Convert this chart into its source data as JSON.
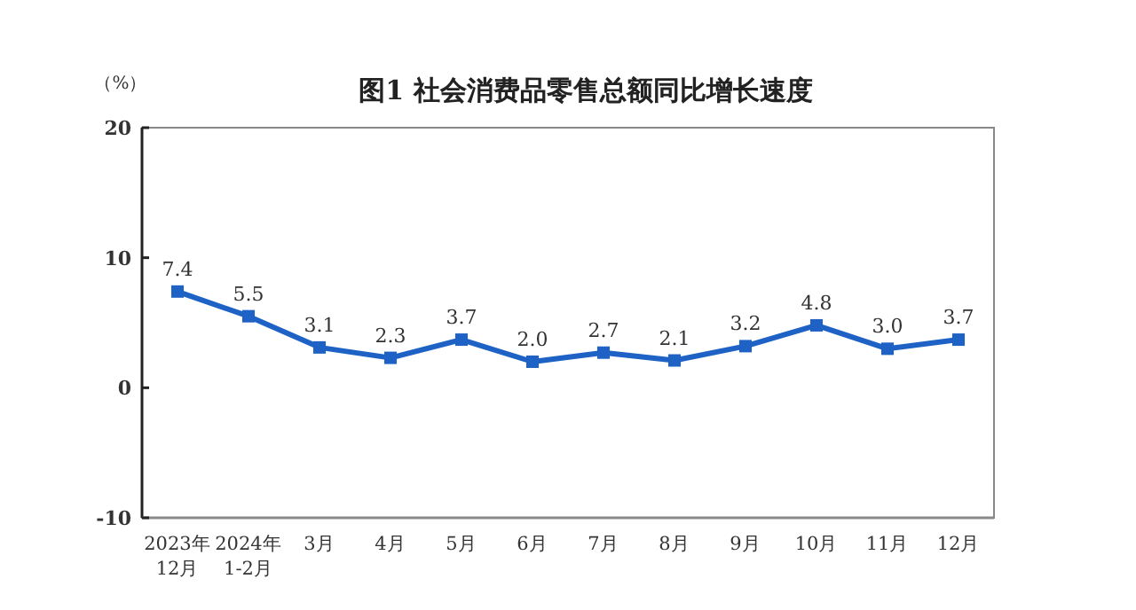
{
  "chart_data": {
    "type": "line",
    "title": "图1  社会消费品零售总额同比增长速度",
    "ylabel": "（%）",
    "categories": [
      "2023年\n12月",
      "2024年\n1-2月",
      "3月",
      "4月",
      "5月",
      "6月",
      "7月",
      "8月",
      "9月",
      "10月",
      "11月",
      "12月"
    ],
    "series": [
      {
        "color": "#1f62c6",
        "values": [
          7.4,
          5.5,
          3.1,
          2.3,
          3.7,
          2.0,
          2.7,
          2.1,
          3.2,
          4.8,
          3.0,
          3.7
        ],
        "value_labels": [
          "7.4",
          "5.5",
          "3.1",
          "2.3",
          "3.7",
          "2.0",
          "2.7",
          "2.1",
          "3.2",
          "4.8",
          "3.0",
          "3.7"
        ]
      }
    ],
    "ylim": [
      -10,
      20
    ],
    "yticks": [
      -10,
      0,
      10,
      20
    ],
    "marker": "square",
    "line_style": "solid"
  }
}
